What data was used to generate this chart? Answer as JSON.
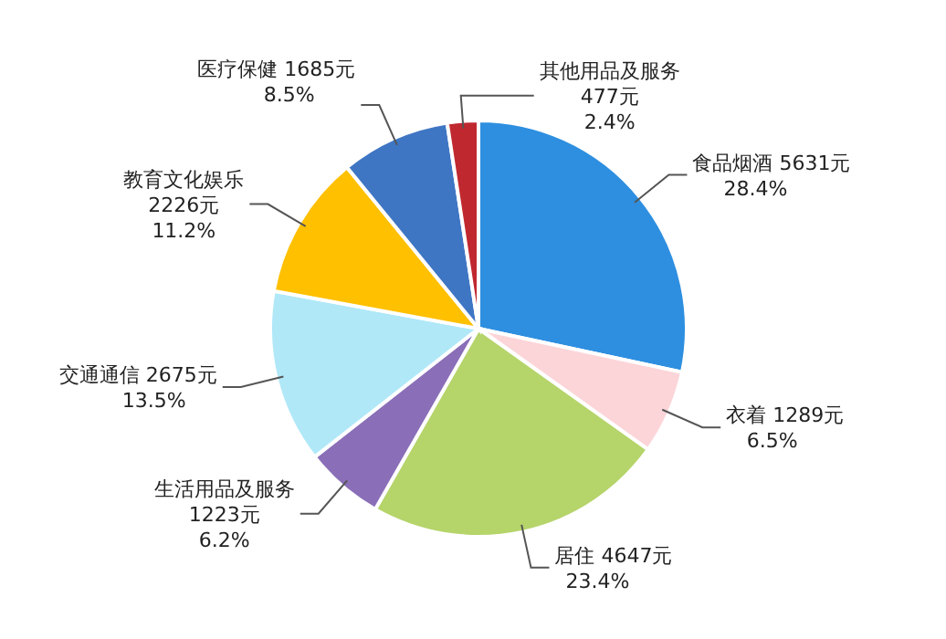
{
  "chart_data": {
    "type": "pie",
    "categories": [
      "食品烟酒",
      "衣着",
      "居住",
      "生活用品及服务",
      "交通通信",
      "教育文化娱乐",
      "医疗保健",
      "其他用品及服务"
    ],
    "values": [
      5631,
      1289,
      4647,
      1223,
      2675,
      2226,
      1685,
      477
    ],
    "value_labels": [
      "5631元 28.4%",
      "1289元 6.5%",
      "4647元 23.4%",
      "1223元 6.2%",
      "2675元 13.5%",
      "2226元 11.2%",
      "1685元 8.5%",
      "477元 2.4%"
    ],
    "colors": [
      "#2e8fe0",
      "#fcd5d9",
      "#b5d46a",
      "#8a6fb8",
      "#b0e8f8",
      "#ffc000",
      "#3f76c4",
      "#c0282f"
    ],
    "legend": false
  }
}
